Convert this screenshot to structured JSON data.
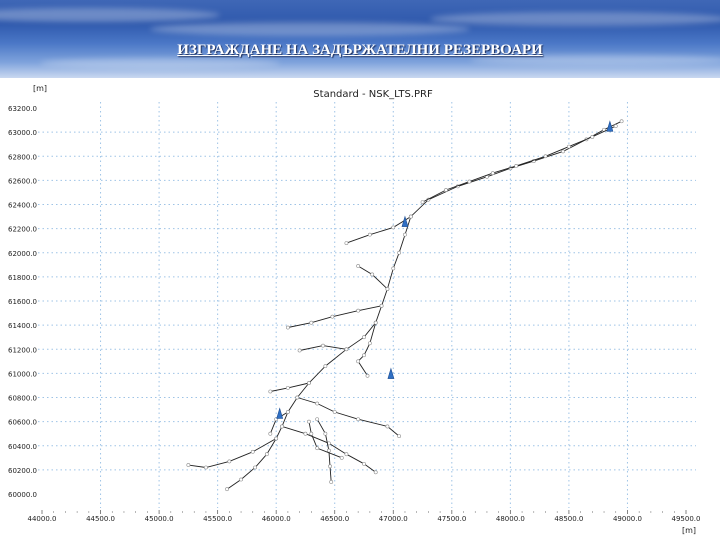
{
  "slide": {
    "title": "ИЗГРАЖДАНЕ НА ЗАДЪРЖАТЕЛНИ РЕЗЕРВОАРИ"
  },
  "chart_data": {
    "type": "scatter",
    "title": "Standard - NSK_LTS.PRF",
    "xlabel": "[m]",
    "ylabel": "[m]",
    "xlim": [
      44000,
      49500
    ],
    "ylim": [
      60000,
      63200
    ],
    "x_ticks": [
      44000,
      44500,
      45000,
      45500,
      46000,
      46500,
      47000,
      47500,
      48000,
      48500,
      49000,
      49500
    ],
    "x_tick_labels": [
      "44000.0",
      "44500.0",
      "45000.0",
      "45500.0",
      "46000.0",
      "46500.0",
      "47000.0",
      "47500.0",
      "48000.0",
      "48500.0",
      "49000.0",
      "49500.0"
    ],
    "y_ticks": [
      63200,
      63000,
      62800,
      62600,
      62400,
      62200,
      62000,
      61800,
      61600,
      61400,
      61200,
      61000,
      60800,
      60600,
      60400,
      60200,
      60000
    ],
    "y_tick_labels": [
      "63200.0",
      "63000.0",
      "62800.0",
      "62600.0",
      "62400.0",
      "62200.0",
      "62000.0",
      "61800.0",
      "61600.0",
      "61400.0",
      "61200.0",
      "61000.0",
      "60800.0",
      "60600.0",
      "60400.0",
      "60200.0",
      "60000.0"
    ],
    "grid": true,
    "line_color": "#222222",
    "node_color": "#8a8a8a",
    "reservoir_color": "#2f6fc4",
    "network": [
      [
        [
          48950,
          63090
        ],
        [
          48800,
          63020
        ],
        [
          48650,
          62940
        ],
        [
          48450,
          62840
        ],
        [
          48200,
          62760
        ],
        [
          48000,
          62700
        ],
        [
          47800,
          62630
        ],
        [
          47550,
          62550
        ],
        [
          47300,
          62440
        ],
        [
          47150,
          62300
        ],
        [
          47100,
          62150
        ],
        [
          47050,
          62000
        ],
        [
          47000,
          61870
        ],
        [
          46950,
          61700
        ],
        [
          46900,
          61560
        ],
        [
          46850,
          61420
        ],
        [
          46750,
          61300
        ],
        [
          46600,
          61200
        ],
        [
          46420,
          61060
        ],
        [
          46280,
          60920
        ],
        [
          46180,
          60800
        ],
        [
          46100,
          60680
        ],
        [
          46050,
          60560
        ],
        [
          46000,
          60460
        ],
        [
          45920,
          60330
        ],
        [
          45820,
          60220
        ],
        [
          45700,
          60120
        ],
        [
          45580,
          60040
        ]
      ],
      [
        [
          48900,
          63050
        ],
        [
          48700,
          62960
        ],
        [
          48500,
          62880
        ],
        [
          48300,
          62800
        ],
        [
          48050,
          62720
        ],
        [
          47850,
          62660
        ],
        [
          47650,
          62590
        ],
        [
          47450,
          62520
        ],
        [
          47250,
          62420
        ]
      ],
      [
        [
          47150,
          62300
        ],
        [
          47000,
          62210
        ],
        [
          46800,
          62150
        ],
        [
          46600,
          62080
        ]
      ],
      [
        [
          46950,
          61700
        ],
        [
          46820,
          61820
        ],
        [
          46700,
          61890
        ]
      ],
      [
        [
          46900,
          61560
        ],
        [
          46700,
          61520
        ],
        [
          46480,
          61470
        ],
        [
          46300,
          61420
        ],
        [
          46100,
          61380
        ]
      ],
      [
        [
          46850,
          61420
        ],
        [
          46800,
          61250
        ],
        [
          46750,
          61150
        ],
        [
          46700,
          61100
        ],
        [
          46780,
          60980
        ]
      ],
      [
        [
          46600,
          61200
        ],
        [
          46400,
          61230
        ],
        [
          46200,
          61190
        ]
      ],
      [
        [
          46280,
          60920
        ],
        [
          46100,
          60880
        ],
        [
          45950,
          60850
        ]
      ],
      [
        [
          46180,
          60800
        ],
        [
          46350,
          60750
        ],
        [
          46500,
          60680
        ],
        [
          46700,
          60620
        ],
        [
          46950,
          60560
        ],
        [
          47050,
          60480
        ]
      ],
      [
        [
          46050,
          60560
        ],
        [
          46250,
          60500
        ],
        [
          46450,
          60420
        ],
        [
          46600,
          60330
        ],
        [
          46750,
          60250
        ],
        [
          46850,
          60180
        ]
      ],
      [
        [
          46000,
          60460
        ],
        [
          45800,
          60350
        ],
        [
          45600,
          60270
        ],
        [
          45400,
          60220
        ],
        [
          45250,
          60240
        ]
      ],
      [
        [
          46350,
          60620
        ],
        [
          46420,
          60500
        ],
        [
          46450,
          60360
        ],
        [
          46460,
          60230
        ],
        [
          46470,
          60100
        ]
      ],
      [
        [
          46280,
          60600
        ],
        [
          46300,
          60500
        ],
        [
          46350,
          60380
        ],
        [
          46560,
          60300
        ]
      ],
      [
        [
          46100,
          60680
        ],
        [
          46000,
          60620
        ],
        [
          45950,
          60500
        ]
      ]
    ],
    "reservoirs": [
      {
        "x": 48850,
        "y": 63040
      },
      {
        "x": 47100,
        "y": 62250
      },
      {
        "x": 46980,
        "y": 60990
      },
      {
        "x": 46030,
        "y": 60660
      }
    ]
  }
}
